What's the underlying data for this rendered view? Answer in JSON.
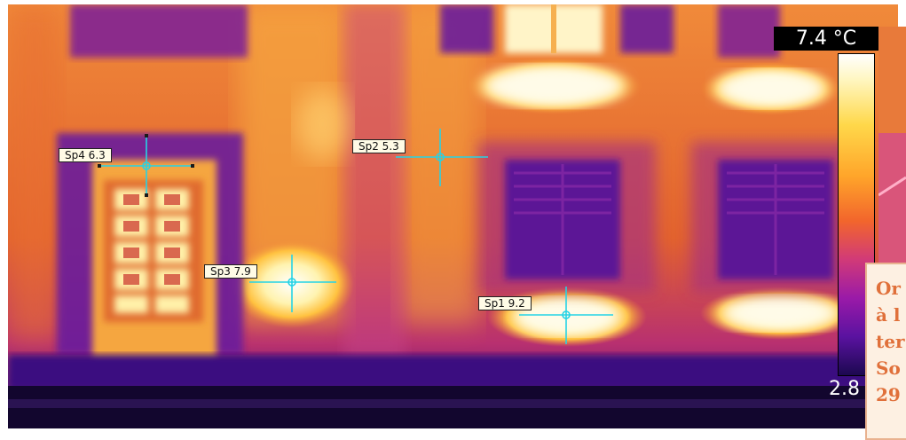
{
  "scale": {
    "max_label": "7.4 °C",
    "min_label": "2.8"
  },
  "spots": [
    {
      "id": "sp4",
      "label": "Sp4 6.3"
    },
    {
      "id": "sp2",
      "label": "Sp2 5.3"
    },
    {
      "id": "sp3",
      "label": "Sp3 7.9"
    },
    {
      "id": "sp1",
      "label": "Sp1 9.2"
    }
  ],
  "caption_lines": [
    "Or",
    "à l",
    "ter",
    "So",
    "29"
  ],
  "colors": {
    "crosshair": "#25d3e6",
    "label_bg": "#fffbe6",
    "caption_text": "#e0703a"
  }
}
